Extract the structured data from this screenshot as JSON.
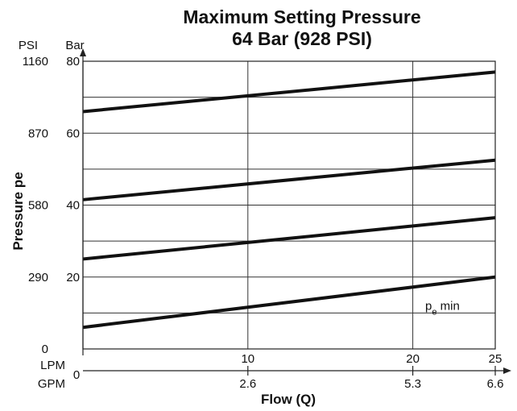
{
  "chart_data": {
    "type": "line",
    "title_line1": "Maximum Setting Pressure",
    "title_line2": "64 Bar (928 PSI)",
    "xlabel": "Flow (Q)",
    "ylabel": "Pressure pe",
    "x_unit_primary": "LPM",
    "x_unit_secondary": "GPM",
    "y_unit_left": "PSI",
    "y_unit_right": "Bar",
    "xlim": [
      0,
      25
    ],
    "ylim": [
      0,
      80
    ],
    "grid": true,
    "x_ticks_lpm": [
      {
        "value": 10,
        "label": "10"
      },
      {
        "value": 20,
        "label": "20"
      },
      {
        "value": 25,
        "label": "25"
      }
    ],
    "x_ticks_gpm": [
      {
        "value": 10,
        "label": "2.6"
      },
      {
        "value": 20,
        "label": "5.3"
      },
      {
        "value": 25,
        "label": "6.6"
      }
    ],
    "x_origin_label": "0",
    "y_ticks_bar": [
      {
        "value": 20,
        "label": "20"
      },
      {
        "value": 40,
        "label": "40"
      },
      {
        "value": 60,
        "label": "60"
      },
      {
        "value": 80,
        "label": "80"
      }
    ],
    "y_ticks_psi": [
      {
        "value": 0,
        "label": "0"
      },
      {
        "value": 20,
        "label": "290"
      },
      {
        "value": 40,
        "label": "580"
      },
      {
        "value": 60,
        "label": "870"
      },
      {
        "value": 80,
        "label": "1160"
      }
    ],
    "y_gridlines": [
      10,
      20,
      30,
      40,
      50,
      60,
      70,
      80
    ],
    "series": [
      {
        "name": "",
        "x": [
          0,
          25
        ],
        "y": [
          66,
          77
        ]
      },
      {
        "name": "",
        "x": [
          0,
          25
        ],
        "y": [
          41.5,
          52.5
        ]
      },
      {
        "name": "",
        "x": [
          0,
          25
        ],
        "y": [
          25,
          36.5
        ]
      },
      {
        "name": "",
        "x": [
          0,
          25
        ],
        "y": [
          6,
          20
        ]
      }
    ],
    "annotation": {
      "base": "p",
      "sub": "e",
      "suffix": " min",
      "x": 21.8,
      "y": 12
    }
  }
}
